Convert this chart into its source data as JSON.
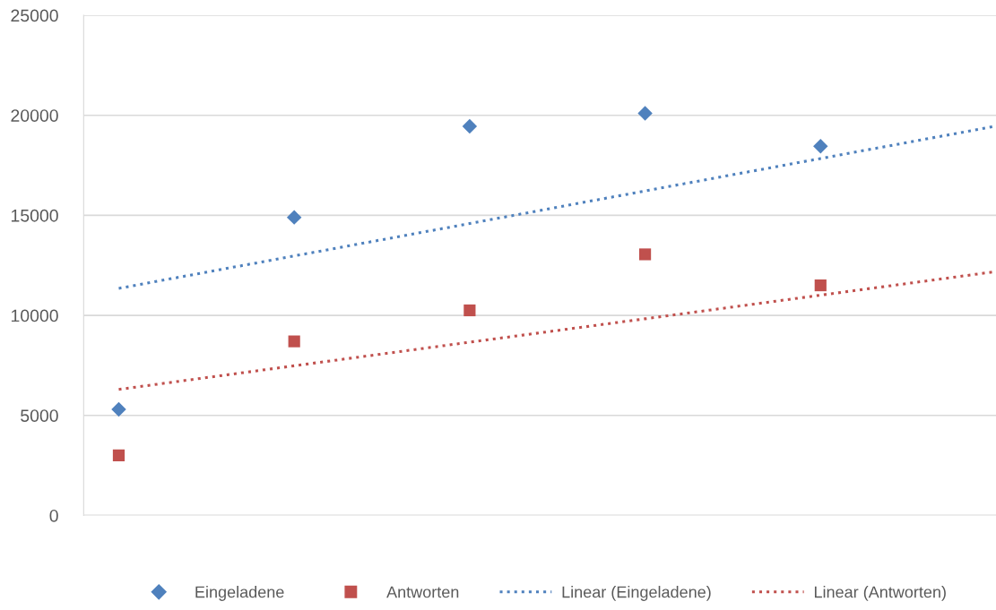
{
  "chart_data": {
    "type": "scatter",
    "categories": [
      null,
      null,
      null,
      null,
      null,
      null
    ],
    "series": [
      {
        "name": "Eingeladene",
        "color": "#4f81bd",
        "marker": "diamond",
        "values": [
          5300,
          14900,
          19450,
          20100,
          18450,
          null
        ]
      },
      {
        "name": "Antworten",
        "color": "#c0504d",
        "marker": "square",
        "values": [
          3000,
          8700,
          10250,
          13050,
          11500,
          null
        ]
      },
      {
        "name": "Linear (Eingeladene)",
        "type": "line",
        "color": "#4f81bd",
        "line_style": "dotted",
        "marker": "none",
        "values": [
          11350,
          12970,
          14590,
          16220,
          17840,
          19460
        ]
      },
      {
        "name": "Linear (Antworten)",
        "type": "line",
        "color": "#c0504d",
        "line_style": "dotted",
        "marker": "none",
        "values": [
          6300,
          7480,
          8660,
          9830,
          11010,
          12190
        ]
      }
    ],
    "ylim": [
      0,
      25000
    ],
    "yticks": [
      0,
      5000,
      10000,
      15000,
      20000,
      25000
    ],
    "grid": "y",
    "legend": "bottom"
  }
}
